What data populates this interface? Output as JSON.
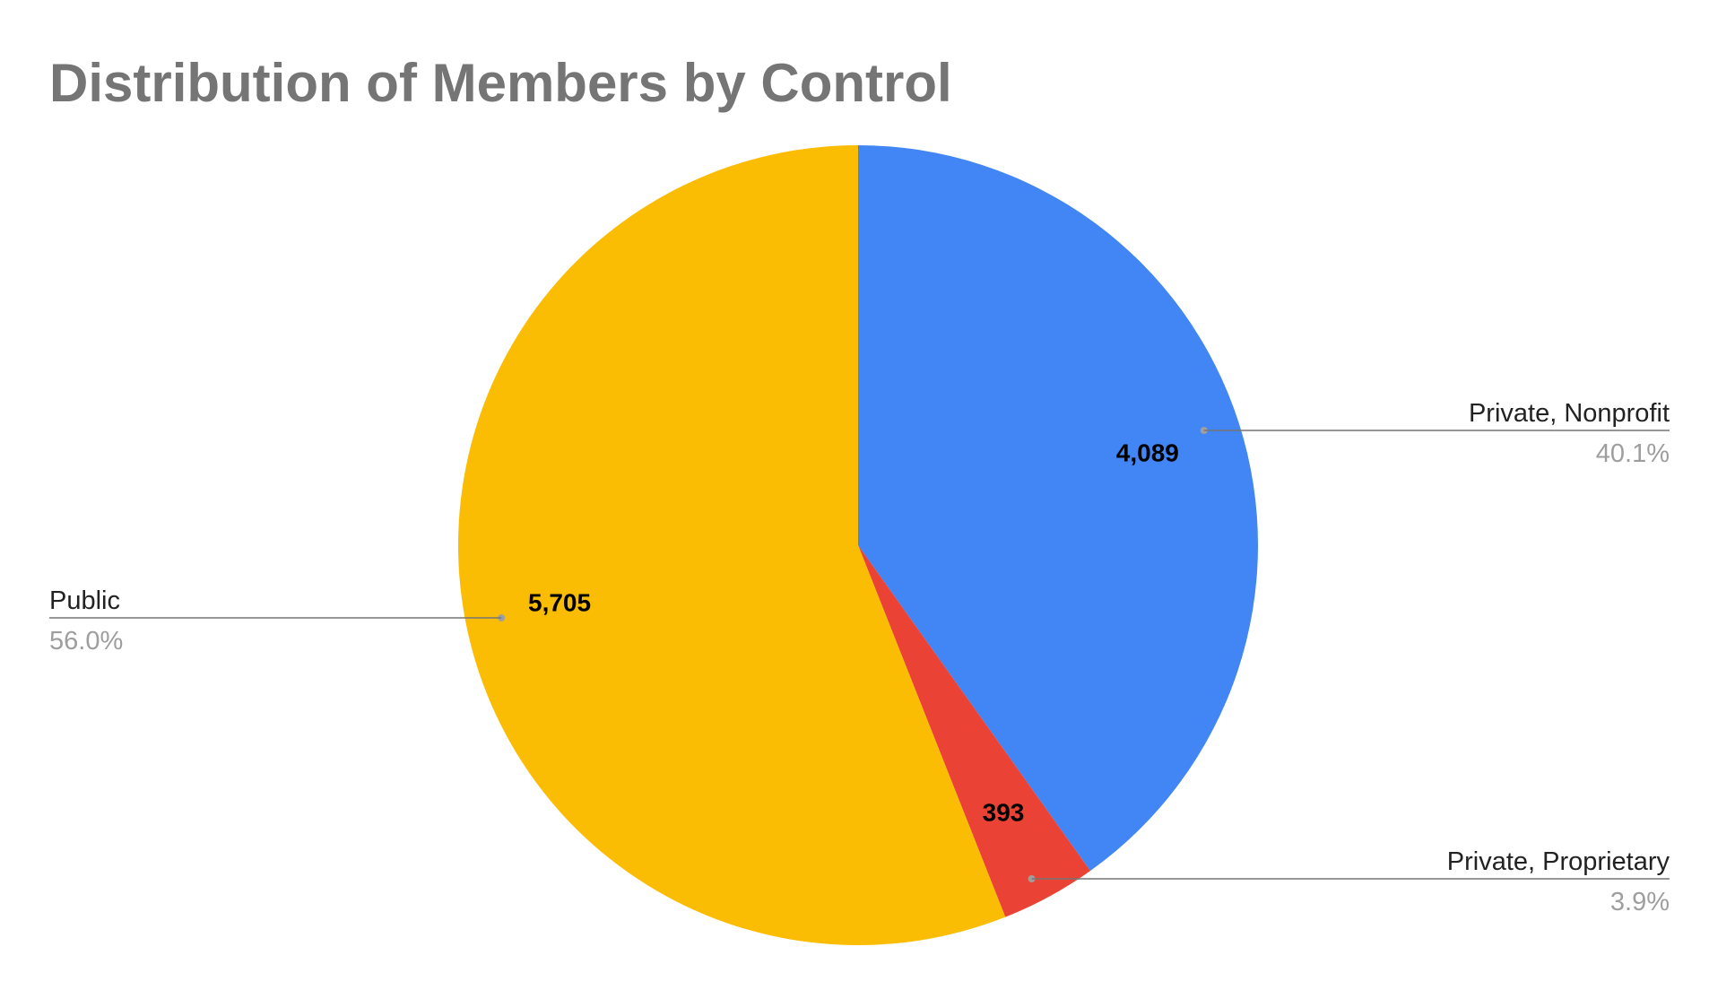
{
  "chart_data": {
    "type": "pie",
    "title": "Distribution of Members by Control",
    "slices": [
      {
        "name": "Private, Nonprofit",
        "value": 4089,
        "value_label": "4,089",
        "percent_label": "40.1%",
        "color": "#4285f4"
      },
      {
        "name": "Private, Proprietary",
        "value": 393,
        "value_label": "393",
        "percent_label": "3.9%",
        "color": "#ea4335"
      },
      {
        "name": "Public",
        "value": 5705,
        "value_label": "5,705",
        "percent_label": "56.0%",
        "color": "#fbbc04"
      }
    ],
    "start_angle": "12 o'clock",
    "direction": "clockwise",
    "legend": "labeled callouts beside slices"
  }
}
